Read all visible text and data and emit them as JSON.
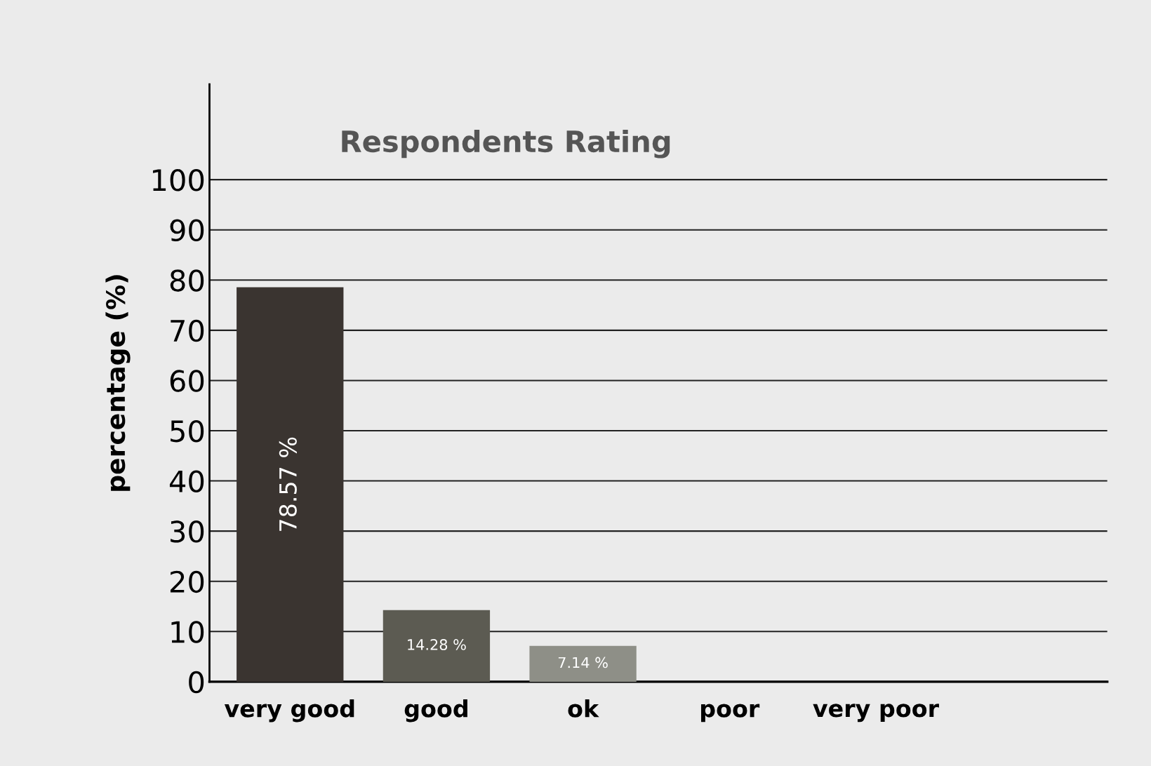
{
  "chart_data": {
    "type": "bar",
    "title": "Respondents Rating",
    "ylabel": "percentage (%)",
    "categories": [
      "very good",
      "good",
      "ok",
      "poor",
      "very poor"
    ],
    "values": [
      78.57,
      14.28,
      7.14,
      0,
      0
    ],
    "colors": [
      "#3a3430",
      "#5c5b52",
      "#8e8f87",
      "#5c5b52",
      "#5c5b52"
    ],
    "value_labels": [
      "78.57 %",
      "14.28 %",
      "7.14 %",
      null,
      null
    ],
    "ylim": [
      0,
      119
    ],
    "yticks": [
      0,
      10,
      20,
      30,
      40,
      50,
      60,
      70,
      80,
      90,
      100
    ],
    "grid": "y"
  }
}
